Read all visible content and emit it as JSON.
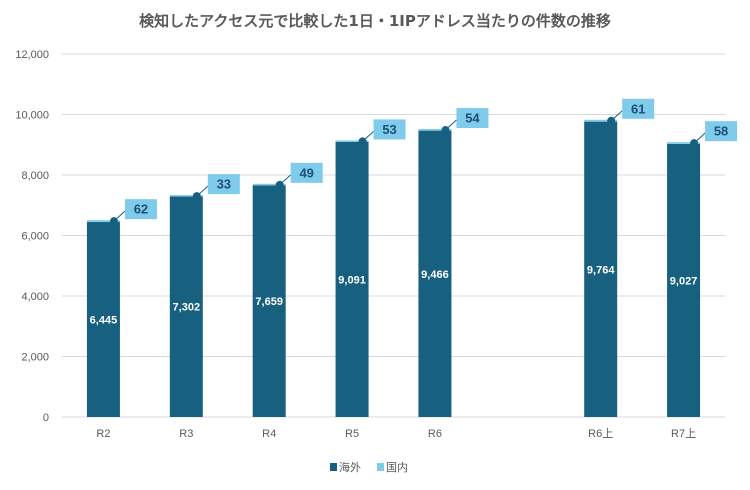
{
  "chart_data": {
    "type": "bar",
    "stacked": true,
    "title": "検知したアクセス元で比較した1日・1IPアドレス当たりの件数の推移",
    "xlabel": "",
    "ylabel": "",
    "ylim": [
      0,
      12000
    ],
    "yticks": [
      0,
      2000,
      4000,
      6000,
      8000,
      10000,
      12000
    ],
    "ytick_labels": [
      "0",
      "2,000",
      "4,000",
      "6,000",
      "8,000",
      "10,000",
      "12,000"
    ],
    "grid": true,
    "categories": [
      "R2",
      "R3",
      "R4",
      "R5",
      "R6",
      "",
      "R6上",
      "R7上"
    ],
    "series": [
      {
        "name": "海外",
        "color": "#17607f",
        "values": [
          6445,
          7302,
          7659,
          9091,
          9466,
          null,
          9764,
          9027
        ],
        "labels": [
          "6,445",
          "7,302",
          "7,659",
          "9,091",
          "9,466",
          "",
          "9,764",
          "9,027"
        ]
      },
      {
        "name": "国内",
        "color": "#7ecbea",
        "values": [
          62,
          33,
          49,
          53,
          54,
          null,
          61,
          58
        ],
        "labels": [
          "62",
          "33",
          "49",
          "53",
          "54",
          "",
          "61",
          "58"
        ]
      }
    ],
    "legend": {
      "position": "bottom",
      "entries": [
        "海外",
        "国内"
      ]
    }
  }
}
